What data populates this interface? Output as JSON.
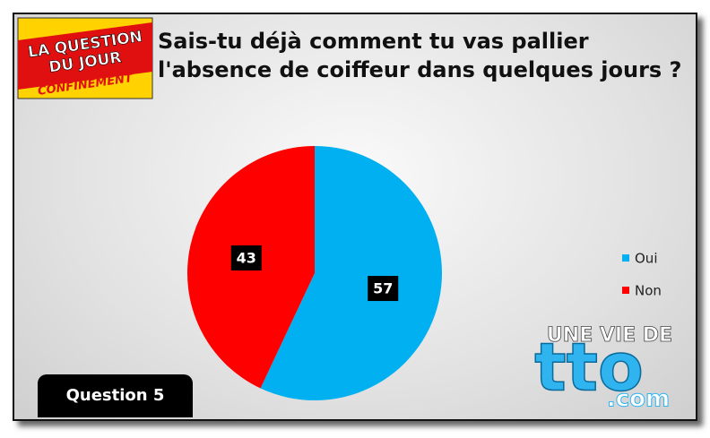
{
  "chart_data": {
    "type": "pie",
    "title": "Sais-tu déjà comment tu vas pallier l'absence de coiffeur dans quelques jours ?",
    "categories": [
      "Oui",
      "Non"
    ],
    "values": [
      57,
      43
    ],
    "colors": [
      "#00b0f0",
      "#ff0000"
    ],
    "legend": "right"
  },
  "badge": "Question 5",
  "logo_top": {
    "line1": "LA QUESTION",
    "line2": "DU JOUR",
    "band": "CONFINEMENT"
  },
  "logo_bottom": {
    "line1": "UNE VIE DE",
    "line2": "tto",
    "line3": ".com"
  }
}
